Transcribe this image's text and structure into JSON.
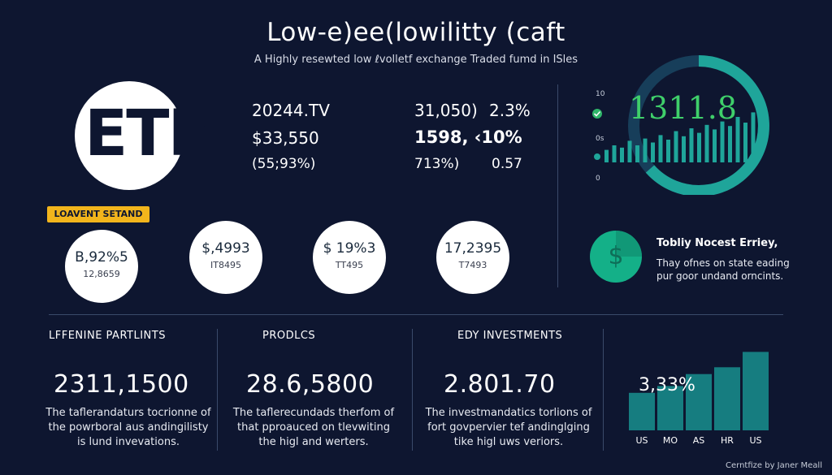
{
  "header": {
    "title": "Low-e)ee(lowilitty (caft",
    "subtitle": "A Highly resewted low ℓvolletf exchange Traded fumd in ISles"
  },
  "logo": {
    "text": "ETF"
  },
  "stats": {
    "col1": [
      "20244.TV",
      "$33,550",
      "(55;93%)"
    ],
    "col2": [
      "31,050)",
      "1598, ‹10%",
      "713%)"
    ],
    "col3": [
      "2.3%",
      "",
      "0.57"
    ]
  },
  "gauge": {
    "value": "1311.8",
    "axis_labels": [
      "10",
      "0s",
      "0"
    ],
    "accent": "#1fa59a",
    "value_color": "#3fcf6a",
    "bars": [
      0.22,
      0.3,
      0.26,
      0.38,
      0.3,
      0.42,
      0.35,
      0.48,
      0.4,
      0.55,
      0.46,
      0.6,
      0.52,
      0.66,
      0.58,
      0.72,
      0.64,
      0.8,
      0.7,
      0.88
    ]
  },
  "tag": {
    "label": "LOAVENT SETAND"
  },
  "circles": [
    {
      "value": "B,92%5",
      "sub": "12,8659"
    },
    {
      "value": "$,4993",
      "sub": "IT8495"
    },
    {
      "value": "$ 19%3",
      "sub": "TT495"
    },
    {
      "value": "17,2395",
      "sub": "T7493"
    }
  ],
  "side_note": {
    "heading": "Tobliy Nocest Erriey,",
    "body_line1": "Thay ofnes on state eading",
    "body_line2": "pur goor undand orncints."
  },
  "sections": [
    {
      "heading": "LFFENINE PARTLINTS",
      "value": "2311,1500",
      "desc": [
        "The taflerandaturs tocrionne of",
        "the powrboral aus andingilisty",
        "is lund invevations."
      ]
    },
    {
      "heading": "PRODLCS",
      "value": "28.6,5800",
      "desc": [
        "The taflerecundads therfom of",
        "that pproauced on tlevwiting",
        "the higl and werters."
      ]
    },
    {
      "heading": "EDY INVESTMENTS",
      "value": "2.801.70",
      "desc": [
        "The investmandatics torlions of",
        "fort govpervier tef andinglging",
        "tike higl uws veriors."
      ]
    }
  ],
  "chart_data": {
    "type": "bar",
    "categories": [
      "US",
      "MO",
      "AS",
      "HR",
      "US"
    ],
    "values": [
      0.44,
      0.52,
      0.66,
      0.74,
      0.92
    ],
    "annotation": "3,33%",
    "color": "#167d80"
  },
  "credit": "Cerntfize by Janer Meall"
}
